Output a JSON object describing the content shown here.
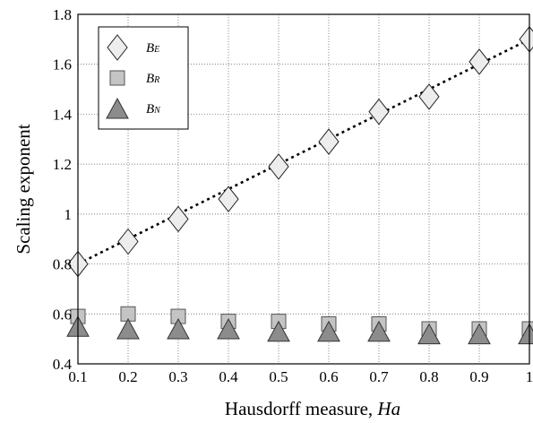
{
  "chart_data": {
    "type": "scatter",
    "xlabel": "Hausdorff measure, ",
    "xlabel_var": "Ha",
    "ylabel": "Scaling exponent",
    "xlim": [
      0.1,
      1.0
    ],
    "ylim": [
      0.4,
      1.8
    ],
    "x_ticks": [
      "0.1",
      "0.2",
      "0.3",
      "0.4",
      "0.5",
      "0.6",
      "0.7",
      "0.8",
      "0.9",
      "1"
    ],
    "y_ticks": [
      "0.4",
      "0.6",
      "0.8",
      "1",
      "1.2",
      "1.4",
      "1.6",
      "1.8"
    ],
    "grid": true,
    "legend_position": "top-left",
    "x": [
      0.1,
      0.2,
      0.3,
      0.4,
      0.5,
      0.6,
      0.7,
      0.8,
      0.9,
      1.0
    ],
    "series": [
      {
        "name": "B",
        "name_sub": "E",
        "marker": "diamond",
        "fill": "#ededed",
        "values": [
          0.8,
          0.89,
          0.98,
          1.06,
          1.19,
          1.29,
          1.41,
          1.47,
          1.61,
          1.7
        ]
      },
      {
        "name": "B",
        "name_sub": "R",
        "marker": "square",
        "fill": "#c4c4c4",
        "values": [
          0.59,
          0.6,
          0.59,
          0.57,
          0.57,
          0.56,
          0.56,
          0.54,
          0.54,
          0.54
        ]
      },
      {
        "name": "B",
        "name_sub": "N",
        "marker": "triangle",
        "fill": "#8c8c8c",
        "values": [
          0.55,
          0.54,
          0.54,
          0.54,
          0.53,
          0.53,
          0.53,
          0.52,
          0.52,
          0.52
        ]
      }
    ],
    "fit_line": {
      "style": "dotted",
      "x": [
        0.1,
        1.0
      ],
      "y": [
        0.8,
        1.7
      ]
    }
  }
}
